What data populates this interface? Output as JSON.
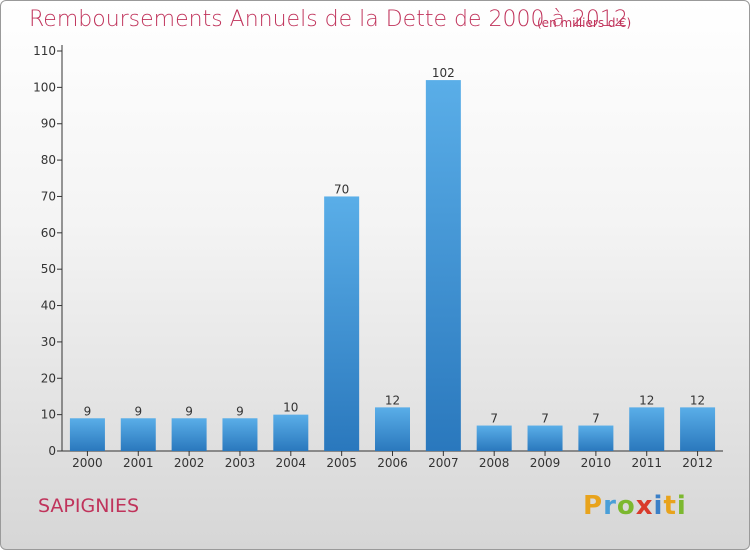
{
  "header": {
    "title": "Remboursements Annuels de la Dette de 2000 à 2012",
    "unit": "(en milliers d'€)"
  },
  "footer": {
    "commune": "SAPIGNIES",
    "logo_letters": [
      "P",
      "r",
      "o",
      "x",
      "i",
      "t",
      "i"
    ],
    "logo_colors": [
      "#e8a31c",
      "#4a9fd8",
      "#7cb82f",
      "#d93a2b",
      "#3a7fc7",
      "#e8a31c",
      "#7cb82f"
    ]
  },
  "chart_data": {
    "type": "bar",
    "title": "Remboursements Annuels de la Dette de 2000 à 2012",
    "xlabel": "",
    "ylabel": "",
    "categories": [
      "2000",
      "2001",
      "2002",
      "2003",
      "2004",
      "2005",
      "2006",
      "2007",
      "2008",
      "2009",
      "2010",
      "2011",
      "2012"
    ],
    "values": [
      9,
      9,
      9,
      9,
      10,
      70,
      12,
      102,
      7,
      7,
      7,
      12,
      12
    ],
    "ylim": [
      0,
      110
    ],
    "yticks": [
      0,
      10,
      20,
      30,
      40,
      50,
      60,
      70,
      80,
      90,
      100,
      110
    ],
    "grid": false,
    "bar_color": "#3f93d6"
  }
}
